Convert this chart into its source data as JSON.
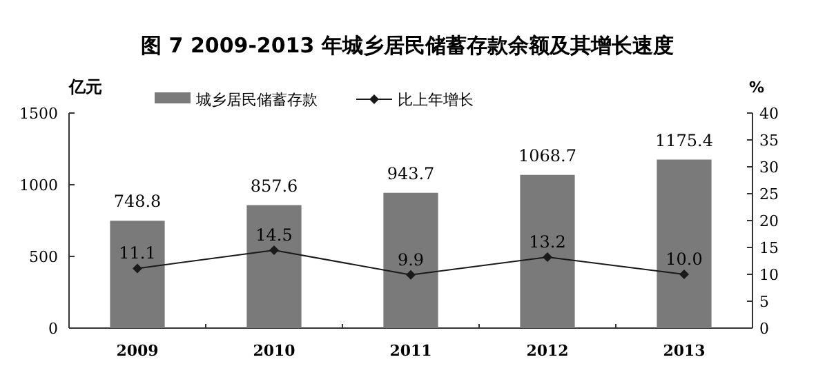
{
  "chart_data": {
    "type": "bar",
    "title": "图 7 2009-2013 年城乡居民储蓄存款余额及其增长速度",
    "ylabel": "亿元",
    "y2label": "%",
    "categories": [
      "2009",
      "2010",
      "2011",
      "2012",
      "2013"
    ],
    "series": [
      {
        "name": "城乡居民储蓄存款",
        "color": "#7a7a7a",
        "values": [
          748.8,
          857.6,
          943.7,
          1068.7,
          1175.4
        ]
      },
      {
        "name": "比上年增长",
        "type": "line",
        "axis": "y2",
        "marker": "diamond",
        "color": "#1a1a1a",
        "values": [
          11.1,
          14.5,
          9.9,
          13.2,
          10.0
        ],
        "value_labels": [
          "11.1",
          "14.5",
          "9.9",
          "13.2",
          "10.0"
        ]
      }
    ],
    "ylim": [
      0,
      1500
    ],
    "yticks": [
      0,
      500,
      1000,
      1500
    ],
    "y2lim": [
      0,
      40
    ],
    "y2ticks": [
      0,
      5,
      10,
      15,
      20,
      25,
      30,
      35,
      40
    ],
    "data_labels": true,
    "legend": "top",
    "grid": false
  }
}
